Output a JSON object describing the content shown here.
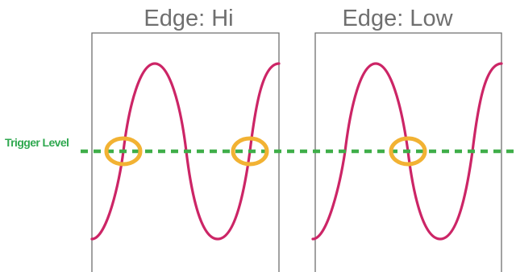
{
  "panels": [
    {
      "title": "Edge: Hi",
      "edge": "rising",
      "crossings": 2
    },
    {
      "title": "Edge: Low",
      "edge": "falling",
      "crossings": 1
    }
  ],
  "trigger": {
    "label": "Trigger Level"
  },
  "colors": {
    "signal": "#cc2566",
    "trigger_line": "#3fae49",
    "trigger_label": "#2fa84f",
    "crossing_marker": "#f2b233",
    "frame": "#6f6f6f",
    "title": "#6f6f6f"
  }
}
